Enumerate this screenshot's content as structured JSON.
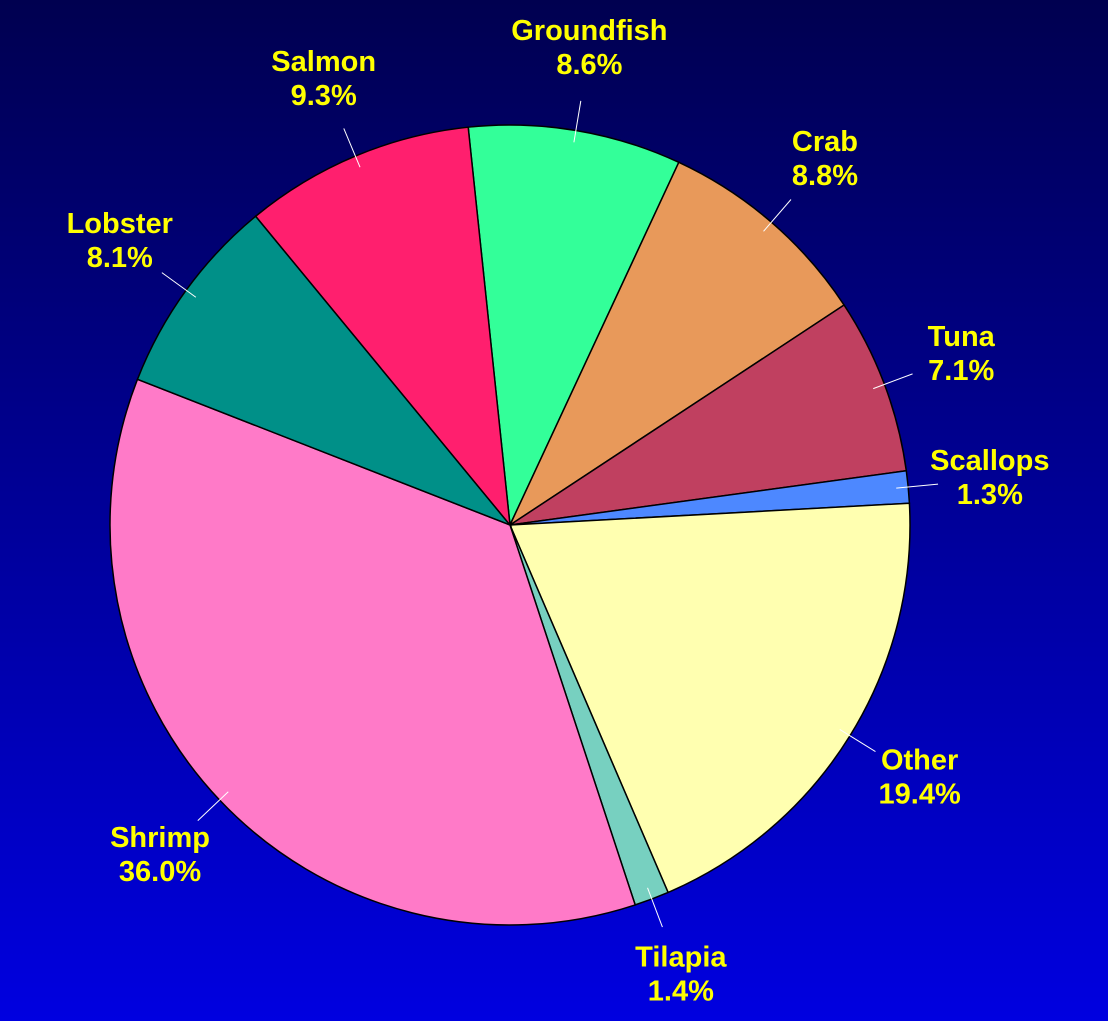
{
  "chart_data": {
    "type": "pie",
    "categories": [
      "Groundfish",
      "Crab",
      "Tuna",
      "Scallops",
      "Other",
      "Tilapia",
      "Shrimp",
      "Lobster",
      "Salmon"
    ],
    "values": [
      8.6,
      8.8,
      7.1,
      1.3,
      19.4,
      1.4,
      36.0,
      8.1,
      9.3
    ],
    "value_labels": [
      "8.6%",
      "8.8%",
      "7.1%",
      "1.3%",
      "19.4%",
      "1.4%",
      "36.0%",
      "8.1%",
      "9.3%"
    ],
    "colors": [
      "#33ff99",
      "#e8995a",
      "#c04060",
      "#4d88ff",
      "#ffffb0",
      "#77d0c0",
      "#ff7ac8",
      "#009088",
      "#ff1f6e"
    ]
  }
}
